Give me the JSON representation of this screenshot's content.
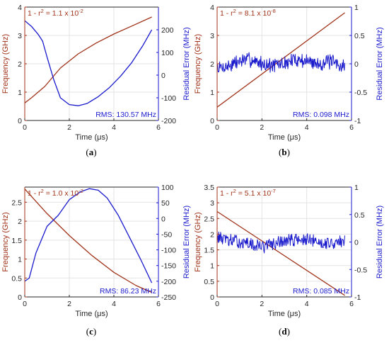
{
  "colors": {
    "left": "#a0331a",
    "right": "#1a1acd",
    "axis": "#262626",
    "grid": "#e3e3e3"
  },
  "chart_data": [
    {
      "type": "line",
      "panel_label": "a",
      "xlabel": "Time (μs)",
      "ylabel_left": "Frequency (GHz)",
      "ylabel_right": "Residual Error (MHz)",
      "xlim": [
        0,
        6
      ],
      "ylim_left": [
        0,
        4
      ],
      "ylim_right": [
        -200,
        300
      ],
      "xticks": [
        0,
        2,
        4,
        6
      ],
      "yticks_left": [
        0,
        1,
        2,
        3,
        4
      ],
      "yticks_right": [
        -200,
        -100,
        0,
        100,
        200
      ],
      "annotation": {
        "prefix": "1 - r",
        "sup1": "2",
        "mid": " = 1.1 x 10",
        "sup2": "-2"
      },
      "rms": "RMS: 130.57 MHz",
      "noisy": false,
      "noise_amp": 0,
      "noise_seed": 1,
      "series": [
        {
          "axis": "left",
          "x": [
            0,
            0.3,
            0.9,
            1.6,
            2.4,
            3.2,
            4.0,
            4.8,
            5.7
          ],
          "y": [
            0.62,
            0.8,
            1.2,
            1.85,
            2.35,
            2.73,
            3.05,
            3.33,
            3.65
          ]
        },
        {
          "axis": "right",
          "x": [
            0,
            0.3,
            0.6,
            0.8,
            1.0,
            1.3,
            1.6,
            2.0,
            2.4,
            2.8,
            3.3,
            3.8,
            4.3,
            4.8,
            5.3,
            5.7
          ],
          "y": [
            240,
            215,
            180,
            150,
            80,
            -20,
            -100,
            -130,
            -135,
            -125,
            -95,
            -55,
            -5,
            55,
            130,
            200
          ]
        }
      ]
    },
    {
      "type": "line",
      "panel_label": "b",
      "xlabel": "Time (μs)",
      "ylabel_left": "Frequency (GHz)",
      "ylabel_right": "Residual Error (MHz)",
      "xlim": [
        0,
        6
      ],
      "ylim_left": [
        0,
        4
      ],
      "ylim_right": [
        -1,
        1
      ],
      "xticks": [
        0,
        2,
        4,
        6
      ],
      "yticks_left": [
        0,
        1,
        2,
        3,
        4
      ],
      "yticks_right": [
        -1,
        -0.5,
        0,
        0.5,
        1
      ],
      "annotation": {
        "prefix": "1 - r",
        "sup1": "2",
        "mid": " = 8.1 x 10",
        "sup2": "-8"
      },
      "rms": "RMS: 0.098 MHz",
      "noisy": true,
      "noise_amp": 0.11,
      "noise_seed": 7,
      "series": [
        {
          "axis": "left",
          "x": [
            0,
            5.7
          ],
          "y": [
            0.47,
            3.8
          ]
        },
        {
          "axis": "right",
          "x": [
            0,
            0.5,
            1.0,
            1.5,
            2.0,
            2.5,
            3.0,
            3.5,
            4.0,
            4.5,
            5.0,
            5.7
          ],
          "y": [
            -0.08,
            -0.04,
            0.05,
            0.08,
            0.0,
            -0.03,
            0.0,
            0.08,
            0.05,
            0.0,
            0.04,
            -0.05
          ]
        }
      ]
    },
    {
      "type": "line",
      "panel_label": "c",
      "xlabel": "Time (μs)",
      "ylabel_left": "Frequency (GHz)",
      "ylabel_right": "Residual Error (MHz)",
      "xlim": [
        0,
        6
      ],
      "ylim_left": [
        0,
        2.9
      ],
      "ylim_right": [
        -250,
        100
      ],
      "xticks": [
        0,
        2,
        4,
        6
      ],
      "yticks_left": [
        0,
        0.5,
        1,
        1.5,
        2,
        2.5
      ],
      "yticks_right": [
        -250,
        -200,
        -150,
        -100,
        -50,
        0,
        50,
        100
      ],
      "annotation": {
        "prefix": "1 - r",
        "sup1": "2",
        "mid": " = 1.0 x 10",
        "sup2": "-2"
      },
      "rms": "RMS: 86.23 MHz",
      "noisy": false,
      "noise_amp": 0,
      "noise_seed": 1,
      "series": [
        {
          "axis": "left",
          "x": [
            0,
            1.0,
            2.0,
            3.0,
            4.0,
            5.0,
            5.7
          ],
          "y": [
            2.85,
            2.2,
            1.62,
            1.1,
            0.65,
            0.3,
            0.12
          ]
        },
        {
          "axis": "right",
          "x": [
            0,
            0.2,
            0.5,
            1.0,
            1.5,
            2.0,
            2.5,
            2.9,
            3.3,
            3.7,
            4.2,
            4.7,
            5.2,
            5.7
          ],
          "y": [
            -200,
            -190,
            -110,
            -25,
            10,
            60,
            85,
            95,
            90,
            65,
            10,
            -60,
            -130,
            -205
          ]
        }
      ]
    },
    {
      "type": "line",
      "panel_label": "d",
      "xlabel": "Time (μs)",
      "ylabel_left": "Frequency (GHz)",
      "ylabel_right": "Residual Error (MHz)",
      "xlim": [
        0,
        6
      ],
      "ylim_left": [
        0,
        3.5
      ],
      "ylim_right": [
        -1,
        1
      ],
      "xticks": [
        0,
        2,
        4,
        6
      ],
      "yticks_left": [
        0,
        0.5,
        1,
        1.5,
        2,
        2.5,
        3,
        3.5
      ],
      "yticks_right": [
        -1,
        -0.5,
        0,
        0.5,
        1
      ],
      "annotation": {
        "prefix": "1 - r",
        "sup1": "2",
        "mid": " = 5.1 x 10",
        "sup2": "-7"
      },
      "rms": "RMS: 0.085 MHz",
      "noisy": true,
      "noise_amp": 0.1,
      "noise_seed": 13,
      "series": [
        {
          "axis": "left",
          "x": [
            0,
            5.7
          ],
          "y": [
            2.72,
            0.05
          ]
        },
        {
          "axis": "right",
          "x": [
            0,
            0.5,
            1.0,
            1.5,
            2.0,
            2.5,
            3.0,
            3.5,
            4.0,
            4.5,
            5.0,
            5.7
          ],
          "y": [
            0.1,
            0.03,
            0.0,
            -0.05,
            -0.08,
            -0.04,
            0.02,
            0.05,
            0.03,
            0.0,
            -0.02,
            0.0
          ]
        }
      ]
    }
  ]
}
